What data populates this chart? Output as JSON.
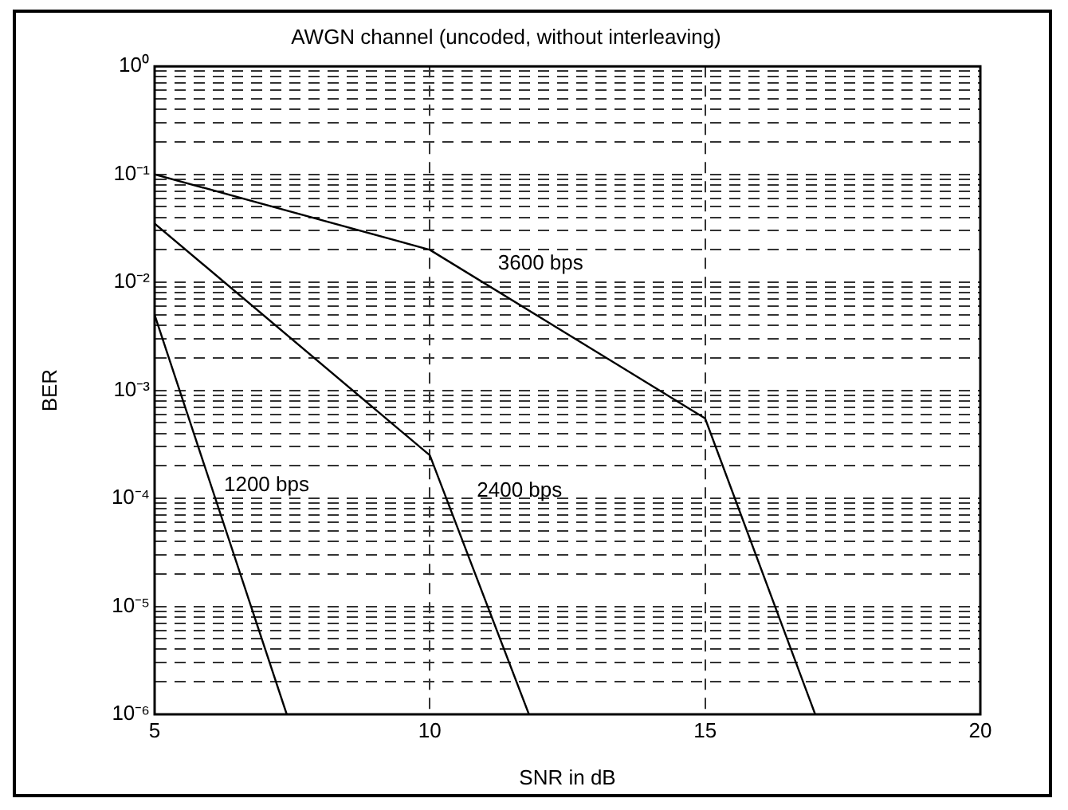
{
  "chart_data": {
    "type": "line",
    "title": "AWGN channel (uncoded, without interleaving)",
    "xlabel": "SNR in dB",
    "ylabel": "BER",
    "log": "y",
    "grid": true,
    "marker": "none",
    "line_style": "solid",
    "xlim": [
      5,
      20
    ],
    "xticks": [
      5,
      10,
      15,
      20
    ],
    "ylim": [
      1e-06,
      1
    ],
    "yticks": [
      {
        "value": 1e-06,
        "label": "10⁻⁶"
      },
      {
        "value": 2e-06,
        "label": null
      },
      {
        "value": 3e-06,
        "label": null
      },
      {
        "value": 4e-06,
        "label": null
      },
      {
        "value": 5e-06,
        "label": null
      },
      {
        "value": 6e-06,
        "label": null
      },
      {
        "value": 7e-06,
        "label": null
      },
      {
        "value": 8e-06,
        "label": null
      },
      {
        "value": 9e-06,
        "label": null
      },
      {
        "value": 1e-05,
        "label": "10⁻⁵"
      },
      {
        "value": 2e-05,
        "label": null
      },
      {
        "value": 3e-05,
        "label": null
      },
      {
        "value": 4e-05,
        "label": null
      },
      {
        "value": 5e-05,
        "label": null
      },
      {
        "value": 6e-05,
        "label": null
      },
      {
        "value": 7e-05,
        "label": null
      },
      {
        "value": 8e-05,
        "label": null
      },
      {
        "value": 9e-05,
        "label": null
      },
      {
        "value": 0.0001,
        "label": "10⁻⁴"
      },
      {
        "value": 0.0002,
        "label": null
      },
      {
        "value": 0.0003,
        "label": null
      },
      {
        "value": 0.0004,
        "label": null
      },
      {
        "value": 0.0005,
        "label": null
      },
      {
        "value": 0.0006,
        "label": null
      },
      {
        "value": 0.0007,
        "label": null
      },
      {
        "value": 0.0008,
        "label": null
      },
      {
        "value": 0.0009,
        "label": null
      },
      {
        "value": 0.001,
        "label": "10⁻³"
      },
      {
        "value": 0.002,
        "label": null
      },
      {
        "value": 0.003,
        "label": null
      },
      {
        "value": 0.004,
        "label": null
      },
      {
        "value": 0.005,
        "label": null
      },
      {
        "value": 0.006,
        "label": null
      },
      {
        "value": 0.007,
        "label": null
      },
      {
        "value": 0.008,
        "label": null
      },
      {
        "value": 0.009,
        "label": null
      },
      {
        "value": 0.01,
        "label": "10⁻²"
      },
      {
        "value": 0.02,
        "label": null
      },
      {
        "value": 0.03,
        "label": null
      },
      {
        "value": 0.04,
        "label": null
      },
      {
        "value": 0.05,
        "label": null
      },
      {
        "value": 0.06,
        "label": null
      },
      {
        "value": 0.07,
        "label": null
      },
      {
        "value": 0.08,
        "label": null
      },
      {
        "value": 0.09,
        "label": null
      },
      {
        "value": 0.1,
        "label": "10⁻¹"
      },
      {
        "value": 0.2,
        "label": null
      },
      {
        "value": 0.3,
        "label": null
      },
      {
        "value": 0.4,
        "label": null
      },
      {
        "value": 0.5,
        "label": null
      },
      {
        "value": 0.6,
        "label": null
      },
      {
        "value": 0.7,
        "label": null
      },
      {
        "value": 0.8,
        "label": null
      },
      {
        "value": 0.9,
        "label": null
      },
      {
        "value": 1,
        "label": "10⁰"
      }
    ],
    "series": [
      {
        "name": "1200 bps",
        "color": "#000000",
        "x": [
          5,
          7.4
        ],
        "values": [
          0.005,
          1e-06
        ]
      },
      {
        "name": "2400 bps",
        "color": "#000000",
        "x": [
          5,
          10,
          11.8
        ],
        "values": [
          0.035,
          0.00025,
          1e-06
        ]
      },
      {
        "name": "3600 bps",
        "color": "#000000",
        "x": [
          5,
          10,
          15,
          17
        ],
        "values": [
          0.1,
          0.02,
          0.00055,
          1e-06
        ]
      }
    ]
  }
}
